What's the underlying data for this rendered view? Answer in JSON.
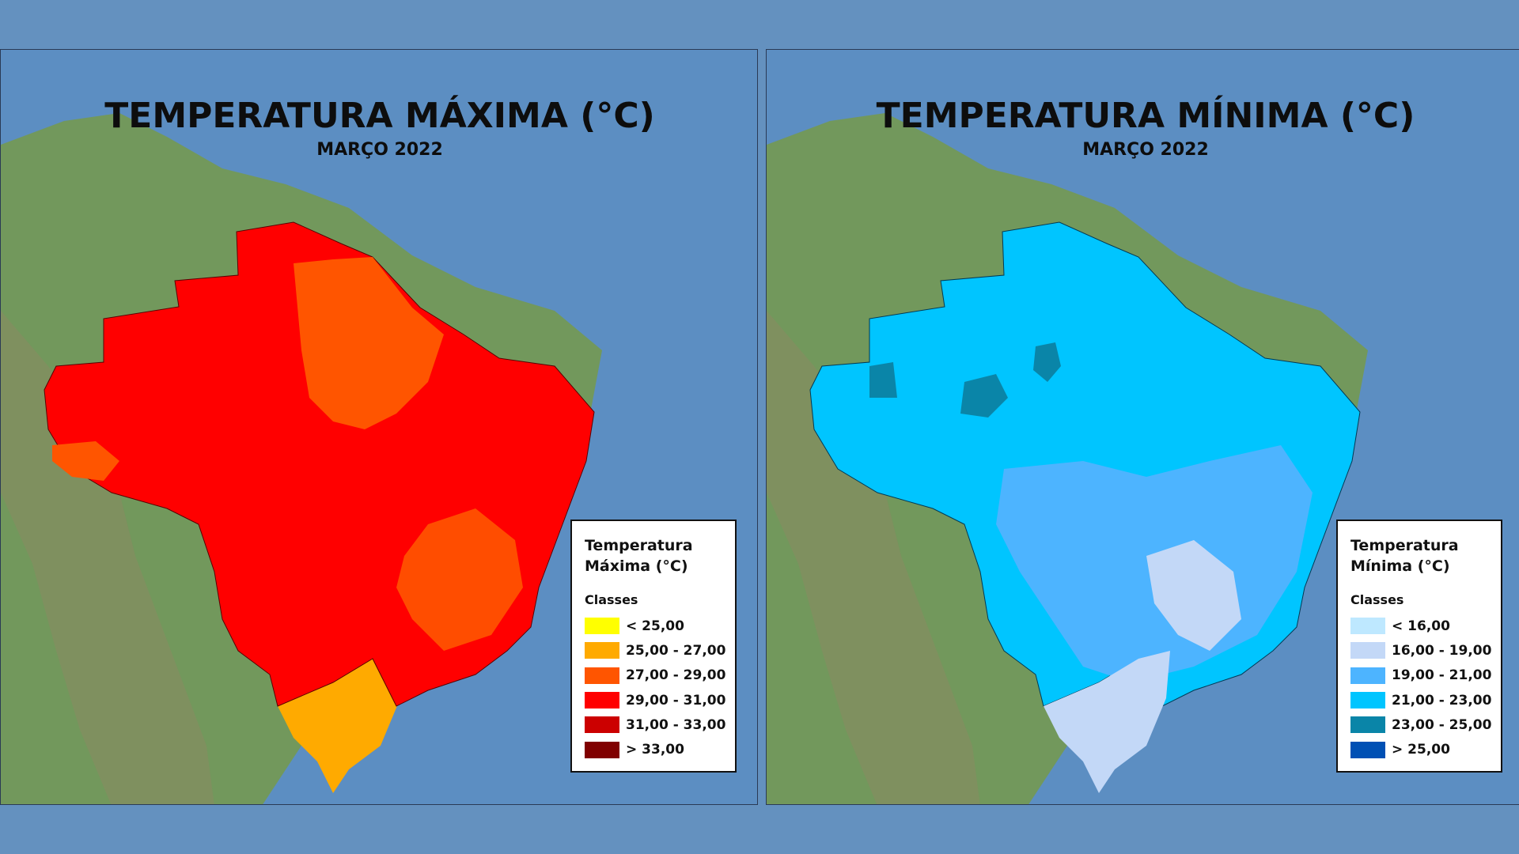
{
  "maps": {
    "max": {
      "title": "TEMPERATURA MÁXIMA (°C)",
      "subtitle": "MARÇO 2022",
      "legend_title_line1": "Temperatura",
      "legend_title_line2": "Máxima (°C)",
      "legend_subtitle": "Classes",
      "classes": [
        {
          "label": "< 25,00",
          "color": "#ffff00"
        },
        {
          "label": "25,00 - 27,00",
          "color": "#ffaa00"
        },
        {
          "label": "27,00 - 29,00",
          "color": "#ff5500"
        },
        {
          "label": "29,00 - 31,00",
          "color": "#ff0000"
        },
        {
          "label": "31,00 - 33,00",
          "color": "#cc0000"
        },
        {
          "label": "> 33,00",
          "color": "#800000"
        }
      ]
    },
    "min": {
      "title": "TEMPERATURA MÍNIMA (°C)",
      "subtitle": "MARÇO 2022",
      "legend_title_line1": "Temperatura",
      "legend_title_line2": "Mínima (°C)",
      "legend_subtitle": "Classes",
      "classes": [
        {
          "label": "< 16,00",
          "color": "#bee8ff"
        },
        {
          "label": "16,00 - 19,00",
          "color": "#c3d8f7"
        },
        {
          "label": "19,00 - 21,00",
          "color": "#4db4ff"
        },
        {
          "label": "21,00 - 23,00",
          "color": "#00c5ff"
        },
        {
          "label": "23,00 - 25,00",
          "color": "#0a85a8"
        },
        {
          "label": "> 25,00",
          "color": "#0050b4"
        }
      ]
    }
  },
  "colors": {
    "ocean": "#5c8ec2",
    "land": "#6f9a5c",
    "page_background": "#6491bf"
  }
}
